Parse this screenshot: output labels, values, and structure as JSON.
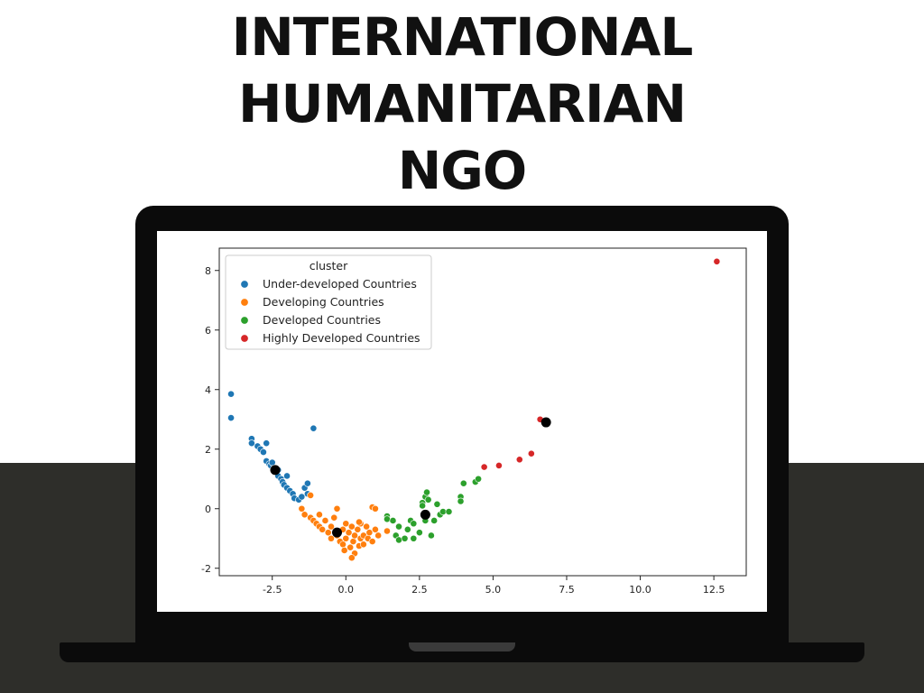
{
  "headline": {
    "line1": "INTERNATIONAL",
    "line2": "HUMANITARIAN",
    "line3": "NGO"
  },
  "chart_data": {
    "type": "scatter",
    "title": "",
    "xlabel": "",
    "ylabel": "",
    "xlim": [
      -4.3,
      13.6
    ],
    "ylim": [
      -2.25,
      8.75
    ],
    "xticks": [
      -2.5,
      0.0,
      2.5,
      5.0,
      7.5,
      10.0,
      12.5
    ],
    "xtick_labels": [
      "-2.5",
      "0.0",
      "2.5",
      "5.0",
      "7.5",
      "10.0",
      "12.5"
    ],
    "yticks": [
      -2,
      0,
      2,
      4,
      6,
      8
    ],
    "ytick_labels": [
      "-2",
      "0",
      "2",
      "4",
      "6",
      "8"
    ],
    "grid": false,
    "legend": {
      "title": "cluster",
      "placement": "top-left"
    },
    "series": [
      {
        "name": "Under-developed Countries",
        "color": "#1f77b4",
        "points": [
          [
            -3.9,
            3.85
          ],
          [
            -3.9,
            3.05
          ],
          [
            -3.2,
            2.35
          ],
          [
            -3.2,
            2.2
          ],
          [
            -3.0,
            2.1
          ],
          [
            -2.9,
            2.0
          ],
          [
            -2.8,
            1.9
          ],
          [
            -2.7,
            2.2
          ],
          [
            -2.7,
            1.6
          ],
          [
            -2.6,
            1.5
          ],
          [
            -2.55,
            1.45
          ],
          [
            -2.5,
            1.55
          ],
          [
            -2.45,
            1.35
          ],
          [
            -2.3,
            1.3
          ],
          [
            -2.3,
            1.1
          ],
          [
            -2.2,
            1.0
          ],
          [
            -2.15,
            0.9
          ],
          [
            -2.1,
            0.8
          ],
          [
            -2.0,
            0.7
          ],
          [
            -2.0,
            1.1
          ],
          [
            -1.9,
            0.6
          ],
          [
            -1.8,
            0.5
          ],
          [
            -1.75,
            0.35
          ],
          [
            -1.6,
            0.3
          ],
          [
            -1.5,
            0.4
          ],
          [
            -1.4,
            0.7
          ],
          [
            -1.3,
            0.85
          ],
          [
            -1.3,
            0.5
          ],
          [
            -1.1,
            2.7
          ]
        ]
      },
      {
        "name": "Developing Countries",
        "color": "#ff7f0e",
        "points": [
          [
            -1.5,
            0.0
          ],
          [
            -1.4,
            -0.2
          ],
          [
            -1.2,
            0.45
          ],
          [
            -1.2,
            -0.3
          ],
          [
            -1.1,
            -0.4
          ],
          [
            -1.0,
            -0.5
          ],
          [
            -0.9,
            -0.2
          ],
          [
            -0.9,
            -0.6
          ],
          [
            -0.8,
            -0.7
          ],
          [
            -0.7,
            -0.4
          ],
          [
            -0.6,
            -0.8
          ],
          [
            -0.5,
            -0.6
          ],
          [
            -0.5,
            -1.0
          ],
          [
            -0.4,
            -0.3
          ],
          [
            -0.3,
            0.0
          ],
          [
            -0.3,
            -0.9
          ],
          [
            -0.2,
            -1.1
          ],
          [
            -0.1,
            -0.7
          ],
          [
            -0.1,
            -1.2
          ],
          [
            0.0,
            -0.5
          ],
          [
            0.0,
            -1.0
          ],
          [
            0.1,
            -0.8
          ],
          [
            0.15,
            -1.3
          ],
          [
            0.2,
            -0.6
          ],
          [
            0.25,
            -1.1
          ],
          [
            0.3,
            -0.9
          ],
          [
            0.3,
            -1.5
          ],
          [
            0.4,
            -0.7
          ],
          [
            0.45,
            -1.25
          ],
          [
            0.5,
            -0.5
          ],
          [
            0.5,
            -1.0
          ],
          [
            0.6,
            -0.9
          ],
          [
            0.6,
            -1.2
          ],
          [
            0.7,
            -0.6
          ],
          [
            0.75,
            -1.0
          ],
          [
            0.8,
            -0.8
          ],
          [
            0.9,
            -1.1
          ],
          [
            1.0,
            -0.7
          ],
          [
            1.1,
            -0.9
          ],
          [
            0.9,
            0.05
          ],
          [
            1.0,
            0.0
          ],
          [
            0.45,
            -0.45
          ],
          [
            0.2,
            -1.65
          ],
          [
            1.4,
            -0.75
          ],
          [
            -0.05,
            -1.4
          ]
        ]
      },
      {
        "name": "Developed Countries",
        "color": "#2ca02c",
        "points": [
          [
            1.4,
            -0.25
          ],
          [
            1.4,
            -0.35
          ],
          [
            1.6,
            -0.4
          ],
          [
            1.7,
            -0.9
          ],
          [
            1.8,
            -0.6
          ],
          [
            1.8,
            -1.05
          ],
          [
            2.0,
            -1.0
          ],
          [
            2.1,
            -0.7
          ],
          [
            2.2,
            -0.4
          ],
          [
            2.3,
            -0.5
          ],
          [
            2.3,
            -1.0
          ],
          [
            2.5,
            -0.8
          ],
          [
            2.6,
            0.2
          ],
          [
            2.6,
            0.1
          ],
          [
            2.7,
            -0.4
          ],
          [
            2.7,
            0.4
          ],
          [
            2.75,
            0.55
          ],
          [
            2.8,
            0.3
          ],
          [
            2.9,
            -0.9
          ],
          [
            3.0,
            -0.4
          ],
          [
            3.1,
            0.15
          ],
          [
            3.2,
            -0.2
          ],
          [
            3.3,
            -0.1
          ],
          [
            3.5,
            -0.1
          ],
          [
            3.9,
            0.4
          ],
          [
            3.9,
            0.25
          ],
          [
            4.0,
            0.85
          ],
          [
            4.4,
            0.9
          ],
          [
            4.5,
            1.0
          ]
        ]
      },
      {
        "name": "Highly Developed Countries",
        "color": "#d62728",
        "points": [
          [
            4.7,
            1.4
          ],
          [
            5.2,
            1.45
          ],
          [
            5.9,
            1.65
          ],
          [
            6.3,
            1.85
          ],
          [
            6.6,
            3.0
          ],
          [
            12.6,
            8.3
          ]
        ]
      }
    ],
    "centroids": {
      "color": "#000000",
      "points": [
        [
          -2.4,
          1.3
        ],
        [
          -0.3,
          -0.8
        ],
        [
          2.7,
          -0.2
        ],
        [
          6.8,
          2.9
        ]
      ]
    }
  }
}
